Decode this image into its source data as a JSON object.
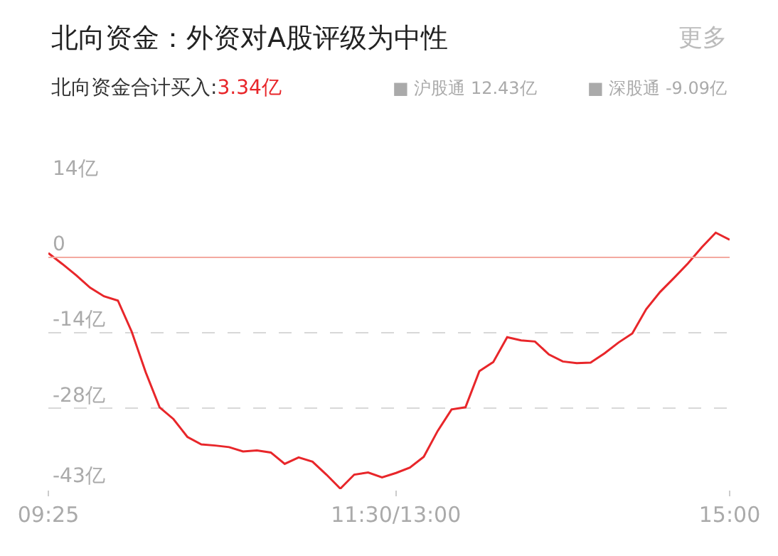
{
  "chart_data": {
    "type": "line",
    "title": "北向资金：外资对A股评级为中性",
    "subtitle": "北向资金合计买入:3.34亿",
    "annotations": [
      "更多",
      "■ 沪股通 12.43亿",
      "■ 深股通 -9.09亿"
    ],
    "categories": [
      "09:25",
      null,
      null,
      null,
      null,
      null,
      null,
      null,
      null,
      null,
      null,
      null,
      null,
      null,
      null,
      null,
      null,
      null,
      null,
      null,
      null,
      null,
      null,
      null,
      null,
      "11:30/13:00",
      null,
      null,
      null,
      null,
      null,
      null,
      null,
      null,
      null,
      null,
      null,
      null,
      null,
      null,
      null,
      null,
      null,
      null,
      null,
      null,
      null,
      null,
      null,
      "15:00"
    ],
    "series": [
      {
        "color": "#e8262a",
        "values": [
          0.8,
          -1.2,
          -3.3,
          -5.6,
          -7.2,
          -8.0,
          -13.8,
          -21.3,
          -27.8,
          -30.0,
          -33.3,
          -34.7,
          -34.9,
          -35.2,
          -36.0,
          -35.8,
          -36.2,
          -38.3,
          -37.1,
          -37.9,
          -40.3,
          -42.9,
          -40.3,
          -39.9,
          -40.8,
          -40.0,
          -39.0,
          -37.0,
          -32.2,
          -28.2,
          -27.8,
          -21.1,
          -19.4,
          -14.8,
          -15.4,
          -15.6,
          -18.0,
          -19.3,
          -19.6,
          -19.5,
          -17.8,
          -15.8,
          -14.1,
          -9.6,
          -6.4,
          -3.8,
          -1.1,
          1.9,
          4.6,
          3.3
        ]
      }
    ],
    "ylim": [
      -43,
      14
    ],
    "yticks": [
      {
        "value": 14,
        "label": "14亿"
      },
      {
        "value": 0,
        "label": "0"
      },
      {
        "value": -14,
        "label": "-14亿"
      },
      {
        "value": -28,
        "label": "-28亿"
      },
      {
        "value": -43,
        "label": "-43亿"
      }
    ],
    "ref_lines": [
      {
        "axis": "y",
        "value": 0,
        "color": "#f4a9a0",
        "line_style": "solid"
      }
    ],
    "grid": "y",
    "line_style": "solid",
    "marker": "none"
  }
}
